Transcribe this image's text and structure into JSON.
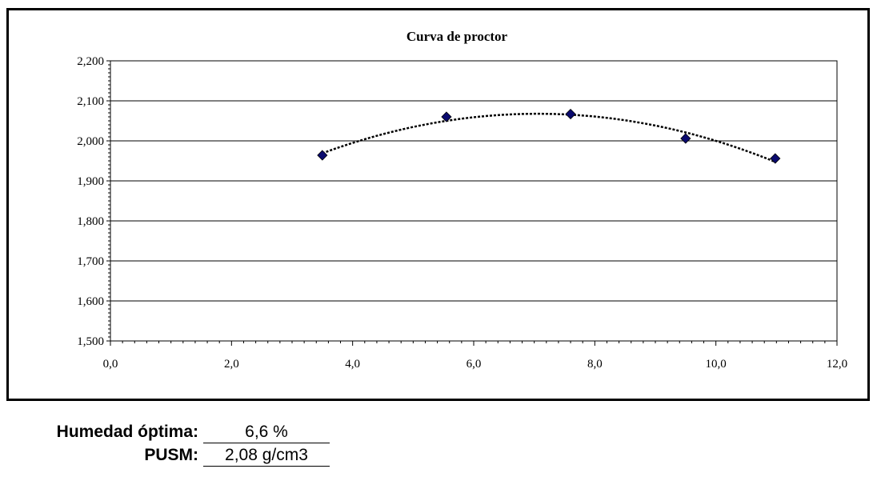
{
  "chart_data": {
    "type": "scatter",
    "title": "Curva de proctor",
    "xlabel": "",
    "ylabel": "",
    "xlim": [
      0,
      12
    ],
    "ylim": [
      1.5,
      2.2
    ],
    "x_ticks": [
      "0,0",
      "2,0",
      "4,0",
      "6,0",
      "8,0",
      "10,0",
      "12,0"
    ],
    "y_ticks": [
      "1,500",
      "1,600",
      "1,700",
      "1,800",
      "1,900",
      "2,000",
      "2,100",
      "2,200"
    ],
    "grid": "horizontal",
    "legend": "none",
    "series": [
      {
        "x": [
          3.5,
          5.55,
          7.6,
          9.5,
          10.98
        ],
        "y": [
          1.964,
          2.06,
          2.067,
          2.006,
          1.956
        ]
      }
    ],
    "trendline": {
      "type": "polynomial",
      "style": "dotted",
      "x_range": [
        3.5,
        10.98
      ]
    },
    "colors": {
      "marker": "#0a0a6e",
      "trendline": "#000000",
      "grid": "#000000"
    }
  },
  "results": {
    "humedad_label": "Humedad óptima:",
    "humedad_value": "6,6 %",
    "pusm_label": "PUSM:",
    "pusm_value": "2,08 g/cm3"
  }
}
